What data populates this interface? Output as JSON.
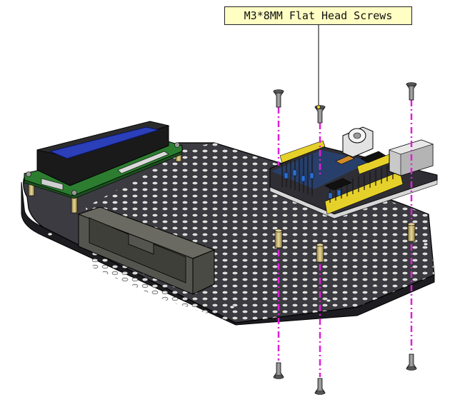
{
  "callout": {
    "text": "M3*8MM Flat Head Screws"
  },
  "colors": {
    "plate": "#3a3a3f",
    "plate_dark": "#232327",
    "hole": "#f2f2f2",
    "lcd_screen": "#2a3fb8",
    "pcb_green": "#2f8a2f",
    "pcb_blue": "#1f4fa0",
    "header_yellow": "#e6d12a",
    "guide_line": "#e020d8",
    "standoff_brass": "#c9b470",
    "callout_fill": "#ffffc4"
  },
  "icons": [
    "screw-icon",
    "standoff-icon",
    "lcd-module",
    "controller-board",
    "battery-holder"
  ]
}
